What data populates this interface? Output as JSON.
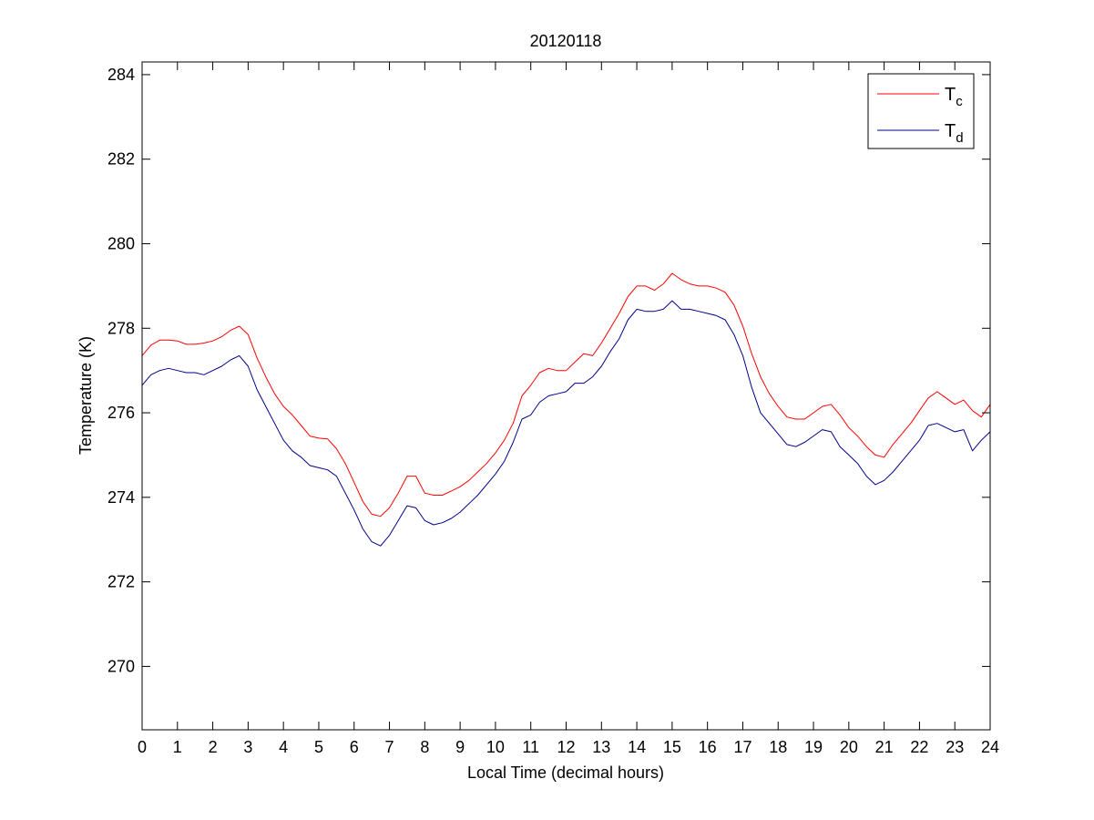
{
  "chart_data": {
    "type": "line",
    "title": "20120118",
    "xlabel": "Local Time (decimal hours)",
    "ylabel": "Temperature (K)",
    "xlim": [
      0,
      24
    ],
    "ylim": [
      268.5,
      284.3
    ],
    "xticks": [
      "0",
      "1",
      "2",
      "3",
      "4",
      "5",
      "6",
      "7",
      "8",
      "9",
      "10",
      "11",
      "12",
      "13",
      "14",
      "15",
      "16",
      "17",
      "18",
      "19",
      "20",
      "21",
      "22",
      "23",
      "24"
    ],
    "yticks": [
      "270",
      "272",
      "274",
      "276",
      "278",
      "280",
      "282",
      "284"
    ],
    "grid": false,
    "legend_position": "top-right",
    "series": [
      {
        "name": "T_c",
        "legend_main": "T",
        "legend_sub": "c",
        "color": "#ff0000",
        "x": [
          0,
          0.25,
          0.5,
          0.75,
          1.0,
          1.25,
          1.5,
          1.75,
          2.0,
          2.25,
          2.5,
          2.75,
          3.0,
          3.25,
          3.5,
          3.75,
          4.0,
          4.25,
          4.5,
          4.75,
          5.0,
          5.25,
          5.5,
          5.75,
          6.0,
          6.25,
          6.5,
          6.75,
          7.0,
          7.25,
          7.5,
          7.75,
          8.0,
          8.25,
          8.5,
          8.75,
          9.0,
          9.25,
          9.5,
          9.75,
          10.0,
          10.25,
          10.5,
          10.75,
          11.0,
          11.25,
          11.5,
          11.75,
          12.0,
          12.25,
          12.5,
          12.75,
          13.0,
          13.25,
          13.5,
          13.75,
          14.0,
          14.25,
          14.5,
          14.75,
          15.0,
          15.25,
          15.5,
          15.75,
          16.0,
          16.25,
          16.5,
          16.75,
          17.0,
          17.25,
          17.5,
          17.75,
          18.0,
          18.25,
          18.5,
          18.75,
          19.0,
          19.25,
          19.5,
          19.75,
          20.0,
          20.25,
          20.5,
          20.75,
          21.0,
          21.25,
          21.5,
          21.75,
          22.0,
          22.25,
          22.5,
          22.75,
          23.0,
          23.25,
          23.5,
          23.75,
          24.0
        ],
        "y": [
          277.35,
          277.6,
          277.72,
          277.72,
          277.7,
          277.62,
          277.62,
          277.65,
          277.7,
          277.8,
          277.95,
          278.05,
          277.85,
          277.3,
          276.85,
          276.45,
          276.15,
          275.95,
          275.7,
          275.45,
          275.4,
          275.38,
          275.15,
          274.8,
          274.35,
          273.9,
          273.6,
          273.55,
          273.75,
          274.1,
          274.5,
          274.5,
          274.1,
          274.05,
          274.05,
          274.15,
          274.25,
          274.4,
          274.6,
          274.8,
          275.05,
          275.35,
          275.75,
          276.4,
          276.65,
          276.95,
          277.05,
          277.0,
          277.0,
          277.2,
          277.4,
          277.35,
          277.65,
          278.0,
          278.35,
          278.75,
          279.0,
          279.0,
          278.9,
          279.05,
          279.3,
          279.15,
          279.05,
          279.0,
          279.0,
          278.95,
          278.85,
          278.55,
          278.05,
          277.4,
          276.85,
          276.45,
          276.15,
          275.9,
          275.85,
          275.85,
          276.0,
          276.15,
          276.2,
          275.95,
          275.65,
          275.45,
          275.2,
          275.0,
          274.95,
          275.25,
          275.5,
          275.75,
          276.05,
          276.35,
          276.5,
          276.35,
          276.2,
          276.3,
          276.05,
          275.9,
          276.2
        ]
      },
      {
        "name": "T_d",
        "legend_main": "T",
        "legend_sub": "d",
        "color": "#00008b",
        "x": [
          0,
          0.25,
          0.5,
          0.75,
          1.0,
          1.25,
          1.5,
          1.75,
          2.0,
          2.25,
          2.5,
          2.75,
          3.0,
          3.25,
          3.5,
          3.75,
          4.0,
          4.25,
          4.5,
          4.75,
          5.0,
          5.25,
          5.5,
          5.75,
          6.0,
          6.25,
          6.5,
          6.75,
          7.0,
          7.25,
          7.5,
          7.75,
          8.0,
          8.25,
          8.5,
          8.75,
          9.0,
          9.25,
          9.5,
          9.75,
          10.0,
          10.25,
          10.5,
          10.75,
          11.0,
          11.25,
          11.5,
          11.75,
          12.0,
          12.25,
          12.5,
          12.75,
          13.0,
          13.25,
          13.5,
          13.75,
          14.0,
          14.25,
          14.5,
          14.75,
          15.0,
          15.25,
          15.5,
          15.75,
          16.0,
          16.25,
          16.5,
          16.75,
          17.0,
          17.25,
          17.5,
          17.75,
          18.0,
          18.25,
          18.5,
          18.75,
          19.0,
          19.25,
          19.5,
          19.75,
          20.0,
          20.25,
          20.5,
          20.75,
          21.0,
          21.25,
          21.5,
          21.75,
          22.0,
          22.25,
          22.5,
          22.75,
          23.0,
          23.25,
          23.5,
          23.75,
          24.0
        ],
        "y": [
          276.65,
          276.9,
          277.0,
          277.05,
          277.0,
          276.95,
          276.95,
          276.9,
          277.0,
          277.1,
          277.25,
          277.35,
          277.1,
          276.55,
          276.15,
          275.75,
          275.35,
          275.1,
          274.95,
          274.75,
          274.7,
          274.65,
          274.5,
          274.1,
          273.7,
          273.25,
          272.95,
          272.85,
          273.1,
          273.45,
          273.8,
          273.75,
          273.45,
          273.35,
          273.4,
          273.5,
          273.65,
          273.85,
          274.05,
          274.3,
          274.55,
          274.85,
          275.3,
          275.85,
          275.95,
          276.25,
          276.4,
          276.45,
          276.5,
          276.7,
          276.7,
          276.85,
          277.1,
          277.45,
          277.75,
          278.2,
          278.45,
          278.4,
          278.4,
          278.45,
          278.65,
          278.45,
          278.45,
          278.4,
          278.35,
          278.3,
          278.2,
          277.85,
          277.35,
          276.6,
          276.0,
          275.75,
          275.5,
          275.25,
          275.2,
          275.3,
          275.45,
          275.6,
          275.55,
          275.2,
          275.0,
          274.8,
          274.5,
          274.3,
          274.4,
          274.6,
          274.85,
          275.1,
          275.35,
          275.7,
          275.75,
          275.65,
          275.55,
          275.6,
          275.1,
          275.35,
          275.55
        ]
      }
    ]
  }
}
